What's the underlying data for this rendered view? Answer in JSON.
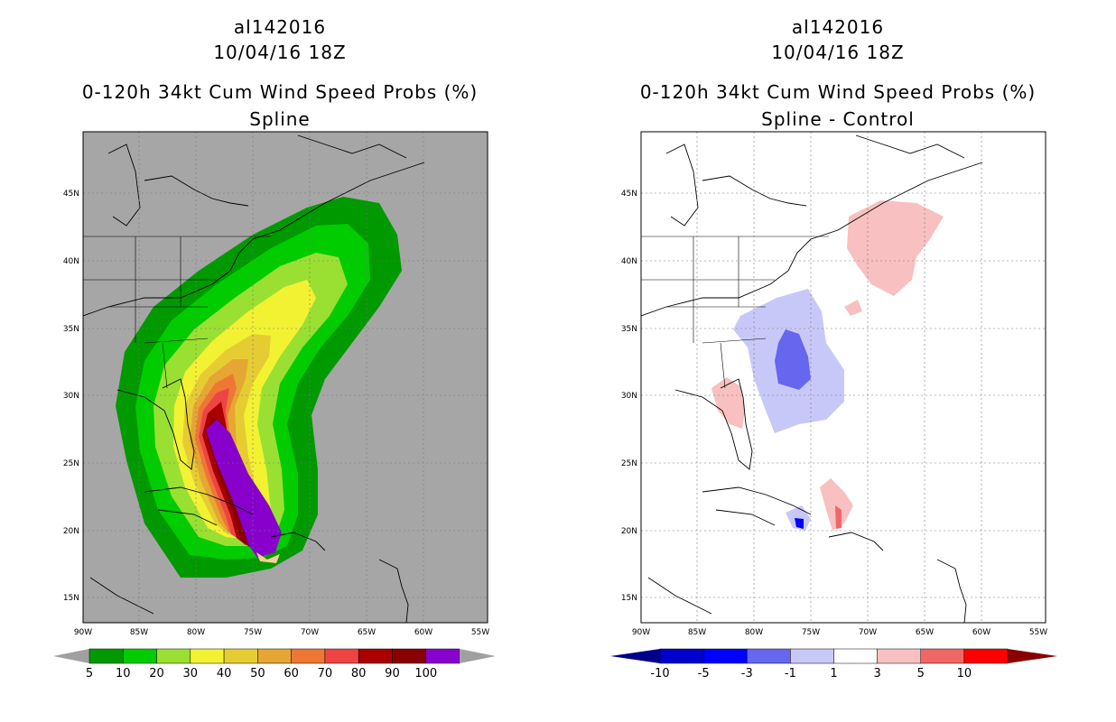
{
  "left": {
    "title_line1": "al142016",
    "title_line2": "10/04/16 18Z",
    "title_line3": "0-120h 34kt Cum Wind Speed Probs (%)",
    "title_line4": "Spline",
    "colorbar": {
      "labels": [
        "5",
        "10",
        "20",
        "30",
        "40",
        "50",
        "60",
        "70",
        "80",
        "90",
        "100"
      ],
      "colors": [
        "#009900",
        "#00cc00",
        "#99e033",
        "#f2f233",
        "#e6cc33",
        "#e6a633",
        "#ee7733",
        "#ee4444",
        "#aa0000",
        "#880000",
        "#8800cc"
      ],
      "end_left": "#a0a0a0",
      "end_right": "#a0a0a0"
    }
  },
  "right": {
    "title_line1": "al142016",
    "title_line2": "10/04/16 18Z",
    "title_line3": "0-120h 34kt Cum Wind Speed Probs (%)",
    "title_line4": "Spline - Control",
    "colorbar": {
      "labels": [
        "-10",
        "-5",
        "-3",
        "-1",
        "1",
        "3",
        "5",
        "10"
      ],
      "colors": [
        "#0000cc",
        "#0000ff",
        "#6666ee",
        "#c8c8f8",
        "#ffffff",
        "#f8c0c0",
        "#f06666",
        "#ff0000"
      ],
      "end_left": "#000088",
      "end_right": "#880000"
    }
  },
  "axes": {
    "lat_labels": [
      "45N",
      "40N",
      "35N",
      "30N",
      "25N",
      "20N",
      "15N"
    ],
    "lon_labels": [
      "90W",
      "85W",
      "80W",
      "75W",
      "70W",
      "65W",
      "60W",
      "55W"
    ]
  }
}
